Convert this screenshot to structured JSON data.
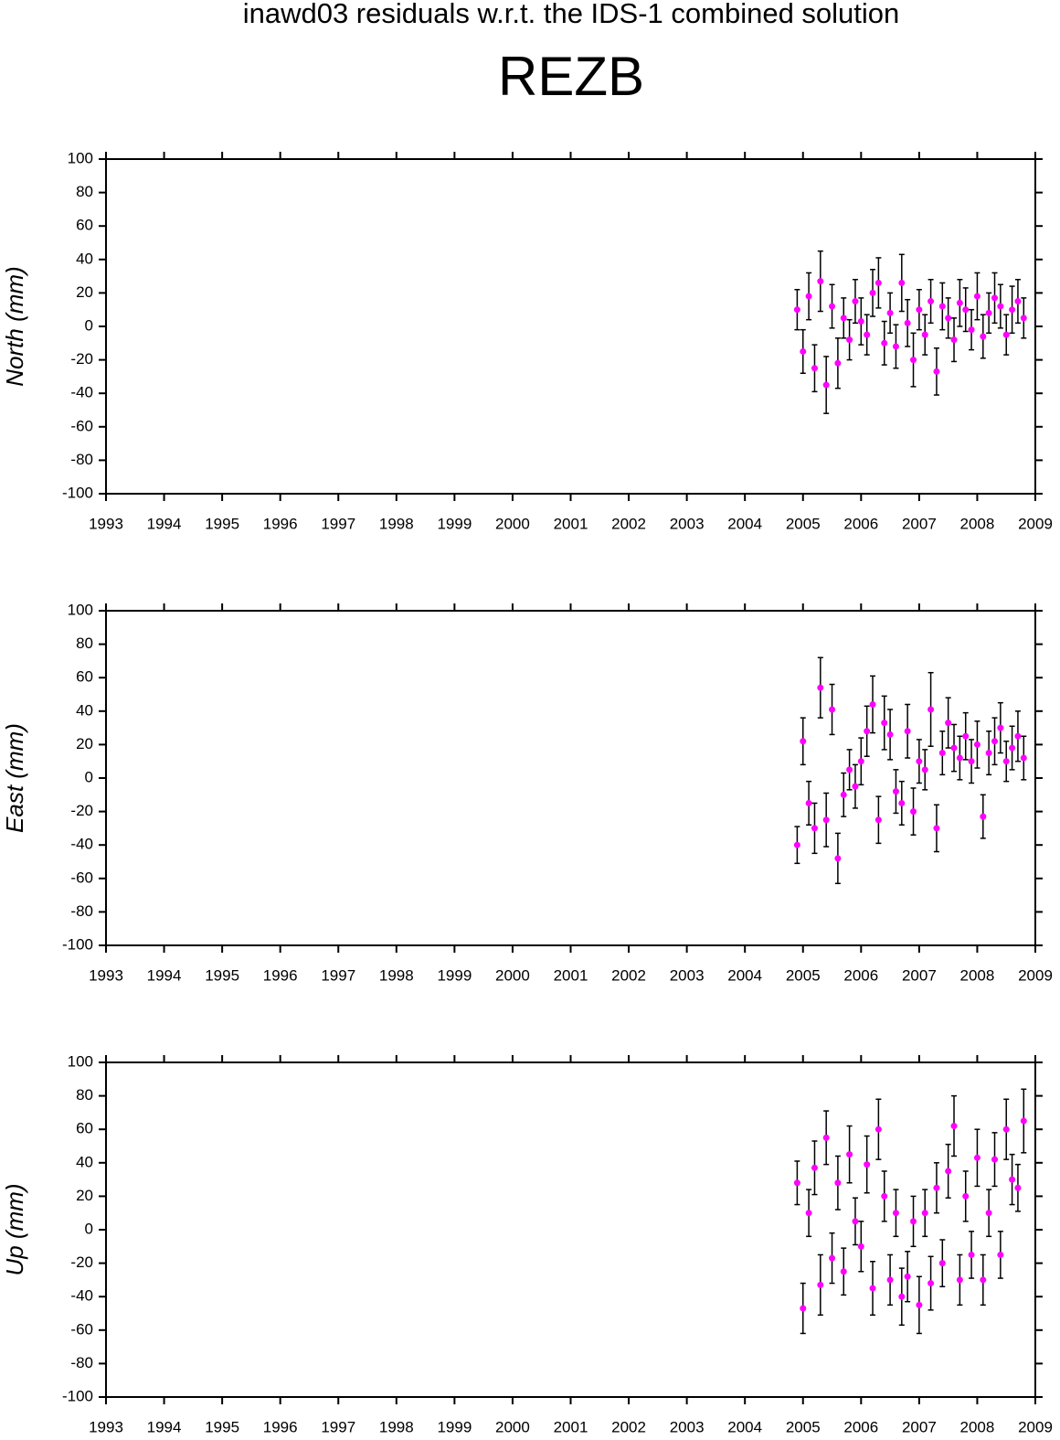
{
  "title": "inawd03 residuals w.r.t. the IDS-1 combined solution",
  "station": "REZB",
  "chart_data": [
    {
      "type": "errorbar",
      "ylabel": "North (mm)",
      "color": "#ff00ff",
      "error_color": "#000000",
      "xlim": [
        1993,
        2009
      ],
      "xticks": [
        1993,
        1994,
        1995,
        1996,
        1997,
        1998,
        1999,
        2000,
        2001,
        2002,
        2003,
        2004,
        2005,
        2006,
        2007,
        2008,
        2009
      ],
      "ylim": [
        -100,
        100
      ],
      "yticks": [
        -100,
        -80,
        -60,
        -40,
        -20,
        0,
        20,
        40,
        60,
        80,
        100
      ],
      "x": [
        2004.9,
        2005.0,
        2005.1,
        2005.2,
        2005.3,
        2005.4,
        2005.5,
        2005.6,
        2005.7,
        2005.8,
        2005.9,
        2006.0,
        2006.1,
        2006.2,
        2006.3,
        2006.4,
        2006.5,
        2006.6,
        2006.7,
        2006.8,
        2006.9,
        2007.0,
        2007.1,
        2007.2,
        2007.3,
        2007.4,
        2007.5,
        2007.6,
        2007.7,
        2007.8,
        2007.9,
        2008.0,
        2008.1,
        2008.2,
        2008.3,
        2008.4,
        2008.5,
        2008.6,
        2008.7,
        2008.8
      ],
      "values": [
        10,
        -15,
        18,
        -25,
        27,
        -35,
        12,
        -22,
        5,
        -8,
        15,
        3,
        -5,
        20,
        26,
        -10,
        8,
        -12,
        26,
        2,
        -20,
        10,
        -5,
        15,
        -27,
        12,
        5,
        -8,
        14,
        10,
        -2,
        18,
        -6,
        8,
        17,
        12,
        -5,
        10,
        15,
        5
      ],
      "errors": [
        12,
        13,
        14,
        14,
        18,
        17,
        13,
        15,
        12,
        12,
        13,
        14,
        12,
        14,
        15,
        13,
        12,
        13,
        17,
        14,
        16,
        12,
        12,
        13,
        14,
        14,
        12,
        13,
        14,
        13,
        12,
        14,
        13,
        12,
        15,
        13,
        12,
        14,
        13,
        12
      ]
    },
    {
      "type": "errorbar",
      "ylabel": "East (mm)",
      "color": "#ff00ff",
      "error_color": "#000000",
      "xlim": [
        1993,
        2009
      ],
      "xticks": [
        1993,
        1994,
        1995,
        1996,
        1997,
        1998,
        1999,
        2000,
        2001,
        2002,
        2003,
        2004,
        2005,
        2006,
        2007,
        2008,
        2009
      ],
      "ylim": [
        -100,
        100
      ],
      "yticks": [
        -100,
        -80,
        -60,
        -40,
        -20,
        0,
        20,
        40,
        60,
        80,
        100
      ],
      "x": [
        2004.9,
        2005.0,
        2005.1,
        2005.2,
        2005.3,
        2005.4,
        2005.5,
        2005.6,
        2005.7,
        2005.8,
        2005.9,
        2006.0,
        2006.1,
        2006.2,
        2006.3,
        2006.4,
        2006.5,
        2006.6,
        2006.7,
        2006.8,
        2006.9,
        2007.0,
        2007.1,
        2007.2,
        2007.3,
        2007.4,
        2007.5,
        2007.6,
        2007.7,
        2007.8,
        2007.9,
        2008.0,
        2008.1,
        2008.2,
        2008.3,
        2008.4,
        2008.5,
        2008.6,
        2008.7,
        2008.8
      ],
      "values": [
        -40,
        22,
        -15,
        -30,
        54,
        -25,
        41,
        -48,
        -10,
        5,
        -5,
        10,
        28,
        44,
        -25,
        33,
        26,
        -8,
        -15,
        28,
        -20,
        10,
        5,
        41,
        -30,
        15,
        33,
        18,
        12,
        25,
        10,
        20,
        -23,
        15,
        22,
        30,
        10,
        18,
        25,
        12
      ],
      "errors": [
        11,
        14,
        13,
        15,
        18,
        16,
        15,
        15,
        13,
        12,
        13,
        14,
        15,
        17,
        14,
        16,
        15,
        13,
        13,
        16,
        14,
        13,
        12,
        22,
        14,
        13,
        15,
        14,
        13,
        14,
        13,
        14,
        13,
        13,
        14,
        15,
        12,
        13,
        15,
        13
      ]
    },
    {
      "type": "errorbar",
      "ylabel": "Up (mm)",
      "color": "#ff00ff",
      "error_color": "#000000",
      "xlim": [
        1993,
        2009
      ],
      "xticks": [
        1993,
        1994,
        1995,
        1996,
        1997,
        1998,
        1999,
        2000,
        2001,
        2002,
        2003,
        2004,
        2005,
        2006,
        2007,
        2008,
        2009
      ],
      "ylim": [
        -100,
        100
      ],
      "yticks": [
        -100,
        -80,
        -60,
        -40,
        -20,
        0,
        20,
        40,
        60,
        80,
        100
      ],
      "x": [
        2004.9,
        2005.0,
        2005.1,
        2005.2,
        2005.3,
        2005.4,
        2005.5,
        2005.6,
        2005.7,
        2005.8,
        2005.9,
        2006.0,
        2006.1,
        2006.2,
        2006.3,
        2006.4,
        2006.5,
        2006.6,
        2006.7,
        2006.8,
        2006.9,
        2007.0,
        2007.1,
        2007.2,
        2007.3,
        2007.4,
        2007.5,
        2007.6,
        2007.7,
        2007.8,
        2007.9,
        2008.0,
        2008.1,
        2008.2,
        2008.3,
        2008.4,
        2008.5,
        2008.6,
        2008.7,
        2008.8
      ],
      "values": [
        28,
        -47,
        10,
        37,
        -33,
        55,
        -17,
        28,
        -25,
        45,
        5,
        -10,
        39,
        -35,
        60,
        20,
        -30,
        10,
        -40,
        -28,
        5,
        -45,
        10,
        -32,
        25,
        -20,
        35,
        62,
        -30,
        20,
        -15,
        43,
        -30,
        10,
        42,
        -15,
        60,
        30,
        25,
        65
      ],
      "errors": [
        13,
        15,
        14,
        16,
        18,
        16,
        15,
        16,
        14,
        17,
        14,
        15,
        17,
        16,
        18,
        15,
        15,
        14,
        17,
        15,
        15,
        17,
        14,
        16,
        15,
        14,
        16,
        18,
        15,
        15,
        14,
        17,
        15,
        14,
        16,
        14,
        18,
        15,
        14,
        19
      ]
    }
  ]
}
